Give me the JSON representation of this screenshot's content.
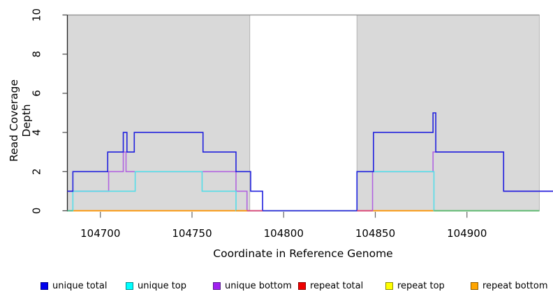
{
  "figure": {
    "xlabel": "Coordinate in Reference Genome",
    "ylabel": "Read Coverage Depth"
  },
  "legend": {
    "items": [
      {
        "label": "unique total",
        "fill": "#0000EE",
        "border": "#00008b"
      },
      {
        "label": "unique top",
        "fill": "#00FFFF",
        "border": "#008b8b"
      },
      {
        "label": "unique bottom",
        "fill": "#A020F0",
        "border": "#551a8b"
      },
      {
        "label": "repeat total",
        "fill": "#EE0000",
        "border": "#8b0000"
      },
      {
        "label": "repeat top",
        "fill": "#FFFF00",
        "border": "#8b8b00"
      },
      {
        "label": "repeat bottom",
        "fill": "#FFA500",
        "border": "#8b5a00"
      }
    ]
  },
  "chart_data": {
    "type": "line",
    "title": "",
    "xlabel": "Coordinate in Reference Genome",
    "ylabel": "Read Coverage Depth",
    "xlim": [
      104682,
      104947
    ],
    "ylim": [
      0,
      10
    ],
    "xticks": [
      104700,
      104750,
      104800,
      104850,
      104900
    ],
    "yticks": [
      0,
      2,
      4,
      6,
      8,
      10
    ],
    "grid": false,
    "legend_position": "bottom",
    "background_shading": {
      "color": "#d9d9d9",
      "regions": [
        {
          "from": 104682,
          "to": 104781.5
        },
        {
          "from": 104840,
          "to": 104939.5
        }
      ]
    },
    "series": [
      {
        "name": "unique total",
        "color": "#2020dd",
        "steps": [
          [
            104682,
            1
          ],
          [
            104685,
            2
          ],
          [
            104704,
            3
          ],
          [
            104712.5,
            4
          ],
          [
            104714.5,
            3
          ],
          [
            104718.5,
            4
          ],
          [
            104756,
            3
          ],
          [
            104774,
            2
          ],
          [
            104782,
            1
          ],
          [
            104788.5,
            0
          ],
          [
            104840,
            2
          ],
          [
            104849,
            4
          ],
          [
            104881.5,
            5
          ],
          [
            104883,
            3
          ],
          [
            104920,
            1
          ]
        ],
        "end": 104947
      },
      {
        "name": "unique top",
        "color": "#55dde8",
        "steps": [
          [
            104682,
            0
          ],
          [
            104685,
            1
          ],
          [
            104719,
            2
          ],
          [
            104755.5,
            1
          ],
          [
            104774,
            0
          ],
          [
            104840,
            2
          ],
          [
            104882,
            0
          ]
        ],
        "end": 104939.5
      },
      {
        "name": "unique bottom",
        "color": "#b164e0",
        "steps": [
          [
            104682,
            1
          ],
          [
            104704.5,
            2
          ],
          [
            104712.5,
            3
          ],
          [
            104714,
            2
          ],
          [
            104774,
            1
          ],
          [
            104780,
            0
          ],
          [
            104848.5,
            2
          ],
          [
            104881.5,
            3
          ],
          [
            104920,
            1
          ]
        ],
        "end": 104947
      },
      {
        "name": "repeat total",
        "color": "#dd2222",
        "steps": [
          [
            104682,
            0
          ]
        ],
        "end": 104939.5
      },
      {
        "name": "repeat top",
        "color": "#eded2a",
        "steps": [
          [
            104682,
            0
          ]
        ],
        "end": 104939.5
      },
      {
        "name": "repeat bottom",
        "color": "#ff9100",
        "steps": [
          [
            104682,
            0
          ]
        ],
        "end": 104939.5
      }
    ],
    "zero_line_overlaps": [
      {
        "from": 104682,
        "to": 104685,
        "color": "#45bb90"
      },
      {
        "from": 104774,
        "to": 104781,
        "color": "#ff9100"
      },
      {
        "from": 104780,
        "to": 104788.5,
        "color": "#dd4477"
      },
      {
        "from": 104840,
        "to": 104848.5,
        "color": "#dd4477"
      },
      {
        "from": 104882,
        "to": 104939.5,
        "color": "#5abb70"
      }
    ]
  }
}
